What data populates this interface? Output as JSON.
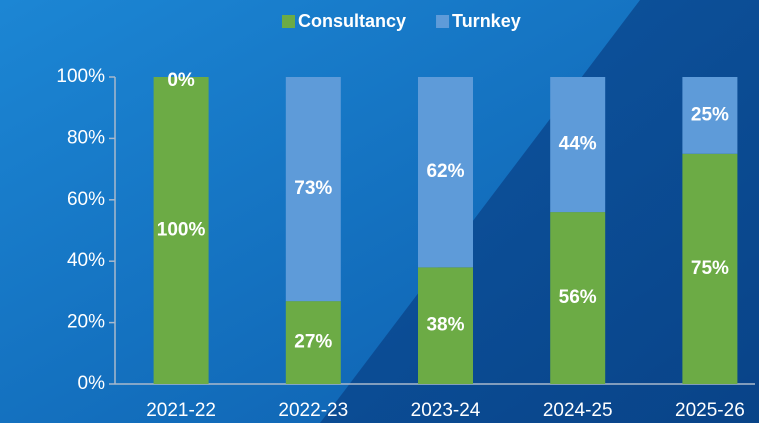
{
  "chart_data": {
    "type": "stacked_bar",
    "categories": [
      "2021-22",
      "2022-23",
      "2023-24",
      "2024-25",
      "2025-26"
    ],
    "series": [
      {
        "name": "Consultancy",
        "color": "#6cab45",
        "values": [
          100,
          27,
          38,
          56,
          75
        ],
        "value_labels": [
          "100%",
          "27%",
          "38%",
          "56%",
          "75%"
        ]
      },
      {
        "name": "Turnkey",
        "color": "#5e9bd9",
        "values": [
          0,
          73,
          62,
          44,
          25
        ],
        "value_labels": [
          "0%",
          "73%",
          "62%",
          "44%",
          "25%"
        ]
      }
    ],
    "ylim": [
      0,
      100
    ],
    "yticks": [
      {
        "value": 0,
        "label": "0%"
      },
      {
        "value": 20,
        "label": "20%"
      },
      {
        "value": 40,
        "label": "40%"
      },
      {
        "value": 60,
        "label": "60%"
      },
      {
        "value": 80,
        "label": "80%"
      },
      {
        "value": 100,
        "label": "100%"
      }
    ],
    "legend": "top"
  }
}
